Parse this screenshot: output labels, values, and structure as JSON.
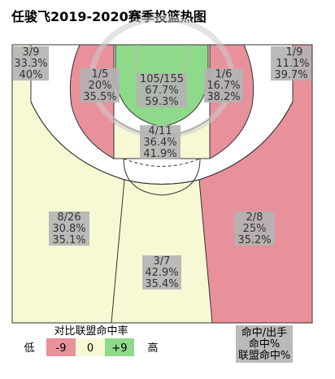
{
  "chart_data": {
    "type": "heatmap",
    "title": "任骏飞2019-2020赛季投篮热图",
    "zones": [
      {
        "id": "left-corner-three",
        "made_attempts": "3/9",
        "fg_pct": "33.3%",
        "league_pct": "40%",
        "diff": 0
      },
      {
        "id": "right-corner-three",
        "made_attempts": "1/9",
        "fg_pct": "11.1%",
        "league_pct": "39.7%",
        "diff": -9
      },
      {
        "id": "left-short-mid",
        "made_attempts": "1/5",
        "fg_pct": "20%",
        "league_pct": "35.5%",
        "diff": -9
      },
      {
        "id": "restricted-area",
        "made_attempts": "105/155",
        "fg_pct": "67.7%",
        "league_pct": "59.3%",
        "diff": 9
      },
      {
        "id": "right-short-mid",
        "made_attempts": "1/6",
        "fg_pct": "16.7%",
        "league_pct": "38.2%",
        "diff": -9
      },
      {
        "id": "paint-front",
        "made_attempts": "4/11",
        "fg_pct": "36.4%",
        "league_pct": "41.9%",
        "diff": 0
      },
      {
        "id": "left-wing-three",
        "made_attempts": "8/26",
        "fg_pct": "30.8%",
        "league_pct": "35.1%",
        "diff": 0
      },
      {
        "id": "right-wing-three",
        "made_attempts": "2/8",
        "fg_pct": "25%",
        "league_pct": "35.2%",
        "diff": -9
      },
      {
        "id": "top-three",
        "made_attempts": "3/7",
        "fg_pct": "42.9%",
        "league_pct": "35.4%",
        "diff": 0
      }
    ],
    "legend": {
      "title": "对比联盟命中率",
      "low_label": "低",
      "high_label": "高",
      "steps": [
        {
          "label": "-9",
          "color": "#e8919b"
        },
        {
          "label": "0",
          "color": "#f7f9d5"
        },
        {
          "label": "+9",
          "color": "#8fd98a"
        }
      ]
    },
    "key_box": [
      "命中/出手",
      "命中%",
      "联盟命中%"
    ]
  },
  "colors": {
    "cold": "#e8919b",
    "neutral": "#f7f9d5",
    "hot": "#8fd98a",
    "label_bg": "#b3b3b3"
  }
}
